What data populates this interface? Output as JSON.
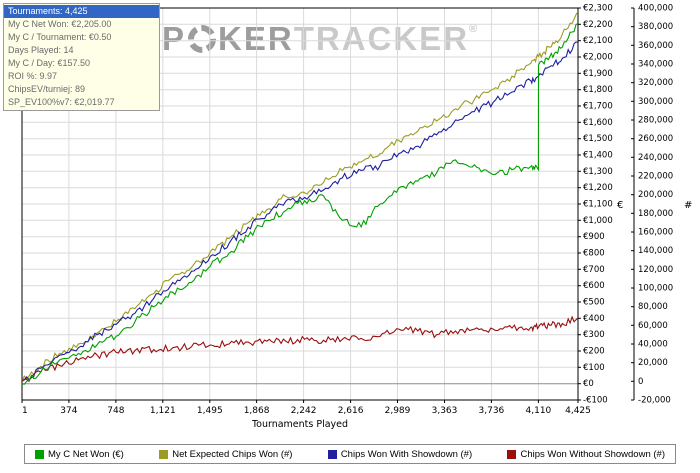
{
  "watermark": {
    "p": "P",
    "ker": "KER",
    "tracker": "TRACKER",
    "reg": "®"
  },
  "stats_box": {
    "lines": [
      {
        "text": "Tournaments: 4,425",
        "highlighted": true
      },
      {
        "text": "My C Net Won: €2,205.00",
        "highlighted": false
      },
      {
        "text": "My C / Tournament: €0.50",
        "highlighted": false
      },
      {
        "text": "Days Played: 14",
        "highlighted": false
      },
      {
        "text": "My C / Day: €157.50",
        "highlighted": false
      },
      {
        "text": "ROI %: 9.97",
        "highlighted": false
      },
      {
        "text": "ChipsEV/turniej: 89",
        "highlighted": false
      },
      {
        "text": "SP_EV100%v7: €2,019.77",
        "highlighted": false
      }
    ]
  },
  "chart_data": {
    "type": "line",
    "title": "",
    "xlabel": "Tournaments Played",
    "grid": true,
    "legend_position": "bottom",
    "xlim": [
      1,
      4425
    ],
    "x_ticks": [
      1,
      374,
      748,
      1121,
      1495,
      1868,
      2242,
      2616,
      2989,
      3363,
      3736,
      4110,
      4425
    ],
    "y_axis_euro": {
      "label": "€",
      "min": -100,
      "max": 2300,
      "step": 100
    },
    "y_axis_chips": {
      "label": "#",
      "min": -20000,
      "max": 400000,
      "step": 20000
    },
    "x": [
      1,
      150,
      300,
      450,
      600,
      750,
      900,
      1050,
      1200,
      1350,
      1500,
      1650,
      1800,
      1950,
      2100,
      2250,
      2400,
      2550,
      2700,
      2850,
      3000,
      3150,
      3300,
      3450,
      3600,
      3750,
      3900,
      4050,
      4110,
      4111,
      4200,
      4300,
      4425
    ],
    "series": [
      {
        "name": "My C Net Won (€)",
        "axis": "euro",
        "color": "#00a000",
        "values": [
          0,
          70,
          145,
          185,
          240,
          290,
          380,
          470,
          560,
          620,
          720,
          800,
          900,
          1000,
          1060,
          1120,
          1150,
          1000,
          960,
          1100,
          1200,
          1240,
          1290,
          1370,
          1340,
          1280,
          1310,
          1330,
          1310,
          1950,
          2000,
          2060,
          2205
        ]
      },
      {
        "name": "Net Expected Chips Won (#)",
        "axis": "chips",
        "color": "#9c9c22",
        "values": [
          0,
          16000,
          30000,
          40000,
          52000,
          64000,
          78000,
          94000,
          112000,
          122000,
          139000,
          153000,
          170000,
          184000,
          198000,
          202000,
          213000,
          226000,
          235000,
          244000,
          258000,
          268000,
          279000,
          292000,
          302000,
          313000,
          327000,
          341000,
          348000,
          348000,
          358000,
          372000,
          396000
        ]
      },
      {
        "name": "Chips Won With Showdown (#)",
        "axis": "chips",
        "color": "#1f1fa0",
        "values": [
          0,
          14000,
          28000,
          36000,
          50000,
          61000,
          73000,
          89000,
          106000,
          118000,
          134000,
          148000,
          165000,
          179000,
          193000,
          197000,
          205000,
          218000,
          226000,
          231000,
          244000,
          252000,
          264000,
          280000,
          289000,
          299000,
          310000,
          322000,
          327000,
          327000,
          337000,
          346000,
          363000
        ]
      },
      {
        "name": "Chips Won Without Showdown (#)",
        "axis": "chips",
        "color": "#9a0e0e",
        "values": [
          0,
          10000,
          17000,
          23000,
          28000,
          31000,
          33000,
          34000,
          36000,
          37000,
          39000,
          40000,
          42000,
          43000,
          43000,
          45000,
          44000,
          45000,
          46000,
          48000,
          56000,
          54000,
          50000,
          54000,
          56000,
          56000,
          57000,
          58000,
          58000,
          58000,
          60000,
          62000,
          68000
        ]
      }
    ]
  }
}
